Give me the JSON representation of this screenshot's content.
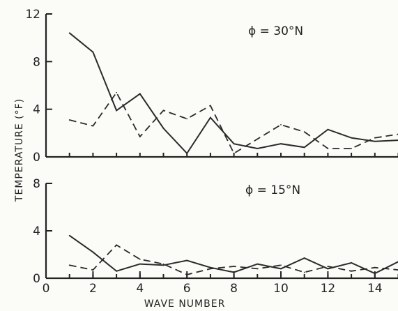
{
  "chart_data": {
    "type": "line",
    "xlabel": "WAVE NUMBER",
    "ylabel": "TEMPERATURE (°F)",
    "x_ticks": [
      "0",
      "2",
      "4",
      "6",
      "8",
      "10",
      "12",
      "14"
    ],
    "xlim": [
      0,
      15
    ],
    "panels": [
      {
        "annotation": "ϕ = 30°N",
        "ylim": [
          0,
          12
        ],
        "y_ticks": [
          "0",
          "4",
          "8",
          "12"
        ],
        "x": [
          1,
          2,
          3,
          4,
          5,
          6,
          7,
          8,
          9,
          10,
          11,
          12,
          13,
          14,
          15
        ],
        "series": [
          {
            "style": "solid",
            "values": [
              10.4,
              8.8,
              3.9,
              5.3,
              2.4,
              0.3,
              3.3,
              1.1,
              0.7,
              1.1,
              0.8,
              2.3,
              1.6,
              1.3,
              1.4
            ]
          },
          {
            "style": "dashed",
            "values": [
              3.1,
              2.6,
              5.4,
              1.7,
              3.9,
              3.2,
              4.3,
              0.3,
              1.5,
              2.7,
              2.1,
              0.7,
              0.7,
              1.6,
              1.9
            ]
          }
        ]
      },
      {
        "annotation": "ϕ = 15°N",
        "ylim": [
          0,
          8
        ],
        "y_ticks": [
          "0",
          "4",
          "8"
        ],
        "x": [
          1,
          2,
          3,
          4,
          5,
          6,
          7,
          8,
          9,
          10,
          11,
          12,
          13,
          14,
          15
        ],
        "series": [
          {
            "style": "solid",
            "values": [
              3.6,
              2.2,
              0.6,
              1.2,
              1.1,
              1.5,
              0.9,
              0.5,
              1.2,
              0.8,
              1.7,
              0.8,
              1.3,
              0.4,
              1.4
            ]
          },
          {
            "style": "dashed",
            "values": [
              1.1,
              0.7,
              2.8,
              1.6,
              1.2,
              0.3,
              0.8,
              1.0,
              0.8,
              1.1,
              0.5,
              1.0,
              0.6,
              0.9,
              0.7
            ]
          }
        ]
      }
    ]
  }
}
